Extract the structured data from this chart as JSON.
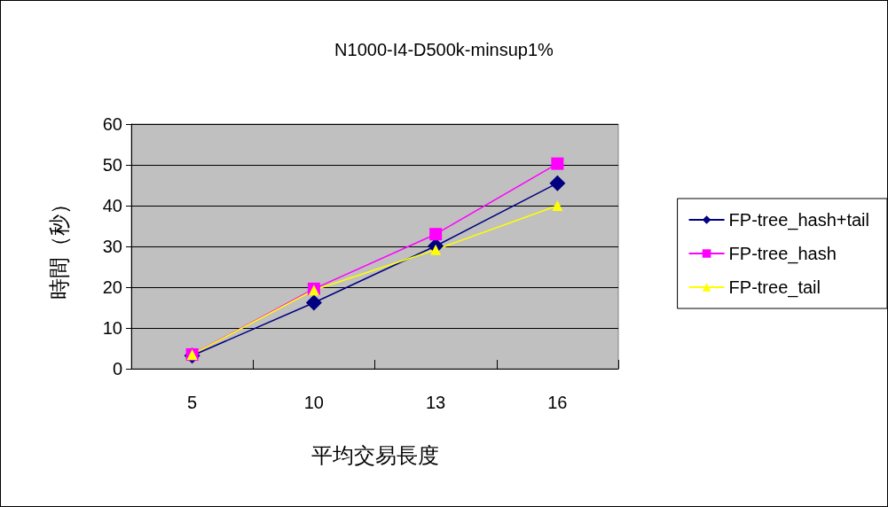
{
  "chart_data": {
    "type": "line",
    "title": "N1000-I4-D500k-minsup1%",
    "xlabel": "平均交易長度",
    "ylabel": "時間（秒）",
    "categories": [
      "5",
      "10",
      "13",
      "16"
    ],
    "series": [
      {
        "name": "FP-tree_hash+tail",
        "color": "#000080",
        "marker": "diamond",
        "values": [
          3.2,
          16.2,
          30.1,
          45.5
        ]
      },
      {
        "name": "FP-tree_hash",
        "color": "#ff00ff",
        "marker": "square",
        "values": [
          3.5,
          19.6,
          33,
          50.3
        ]
      },
      {
        "name": "FP-tree_tail",
        "color": "#ffff00",
        "marker": "triangle",
        "values": [
          3.5,
          19.3,
          29.2,
          40
        ]
      }
    ],
    "ylim": [
      0,
      60
    ],
    "yticks": [
      0,
      10,
      20,
      30,
      40,
      50,
      60
    ],
    "grid": "y",
    "legend": "right"
  }
}
